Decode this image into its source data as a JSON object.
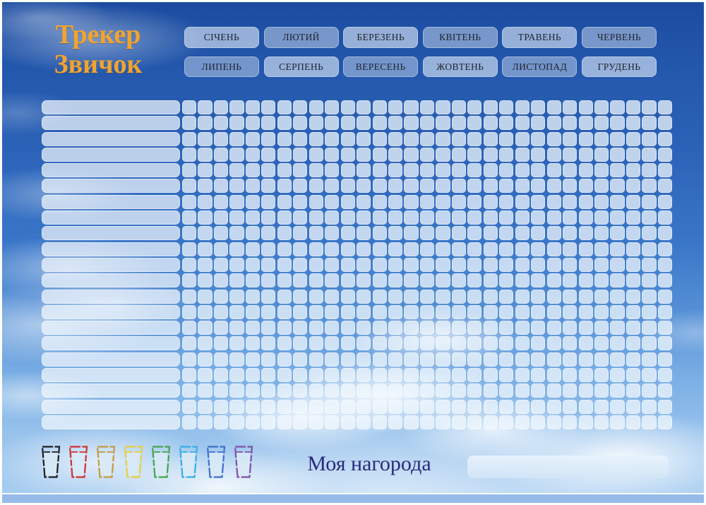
{
  "title": {
    "line1": "Трекер",
    "line2": "Звичок"
  },
  "months": [
    "СІЧЕНЬ",
    "ЛЮТИЙ",
    "БЕРЕЗЕНЬ",
    "КВІТЕНЬ",
    "ТРАВЕНЬ",
    "ЧЕРВЕНЬ",
    "ЛИПЕНЬ",
    "СЕРПЕНЬ",
    "ВЕРЕСЕНЬ",
    "ЖОВТЕНЬ",
    "ЛИСТОПАД",
    "ГРУДЕНЬ"
  ],
  "tracker": {
    "habit_rows": 21,
    "day_columns": 31
  },
  "cups": {
    "count": 8,
    "colors": [
      "#1f1f1f",
      "#d03030",
      "#c49a3e",
      "#e8cf3a",
      "#43a54a",
      "#35aee2",
      "#3f6fc8",
      "#7e51a8"
    ],
    "water_color": "#d8e9f7"
  },
  "reward": {
    "label": "Моя нагорода",
    "input_value": "",
    "input_placeholder": ""
  },
  "colors": {
    "title_text": "#f2a42e",
    "reward_text": "#2a2a7e",
    "bottom_strip": "#96bbe9",
    "sky_top": "#1b4ba0",
    "sky_bottom": "#a9cef1",
    "cell_fill": "rgba(242,248,254,0.75)"
  }
}
